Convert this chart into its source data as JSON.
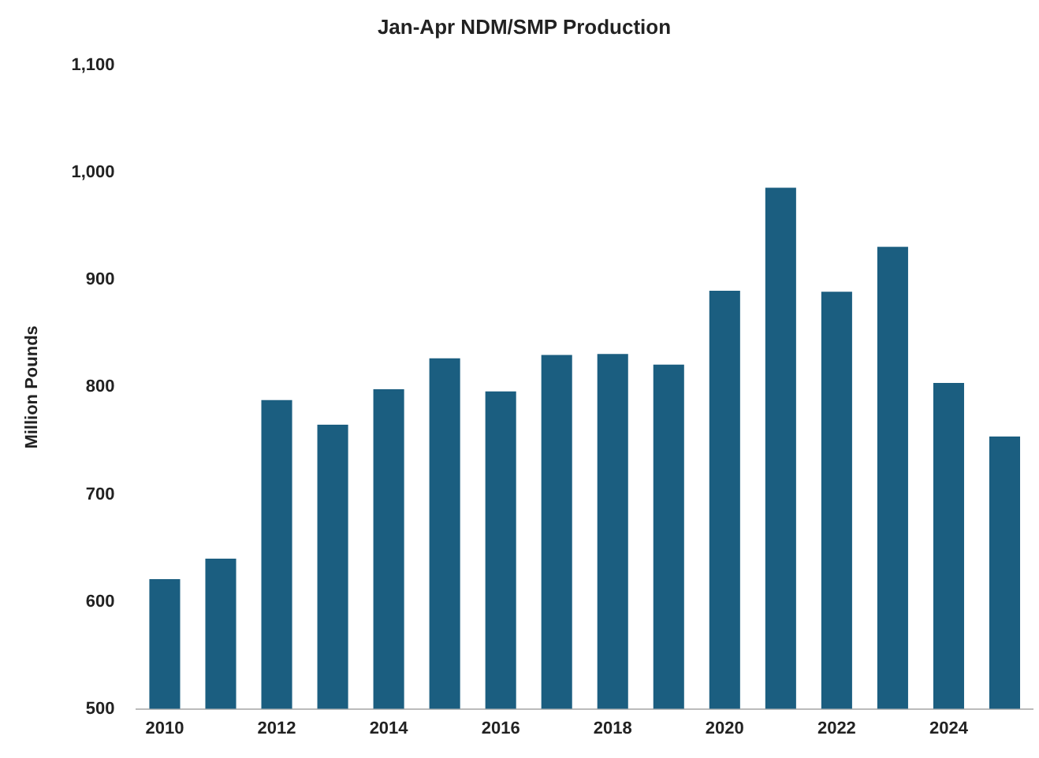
{
  "chart_data": {
    "type": "bar",
    "title": "Jan-Apr NDM/SMP Production",
    "ylabel": "Million Pounds",
    "categories": [
      "2010",
      null,
      "2012",
      null,
      "2014",
      null,
      "2016",
      null,
      "2018",
      null,
      "2020",
      null,
      "2022",
      null,
      "2024",
      null
    ],
    "values": [
      621,
      640,
      788,
      765,
      798,
      827,
      796,
      830,
      831,
      821,
      890,
      986,
      889,
      931,
      804,
      754
    ],
    "color": "#1b5e80",
    "ylim": [
      500,
      1100
    ],
    "yticks": [
      500,
      600,
      700,
      800,
      900,
      {
        "value": 1000,
        "label": "1,000"
      },
      {
        "value": 1100,
        "label": "1,100"
      }
    ],
    "grid": false,
    "legend": false
  }
}
